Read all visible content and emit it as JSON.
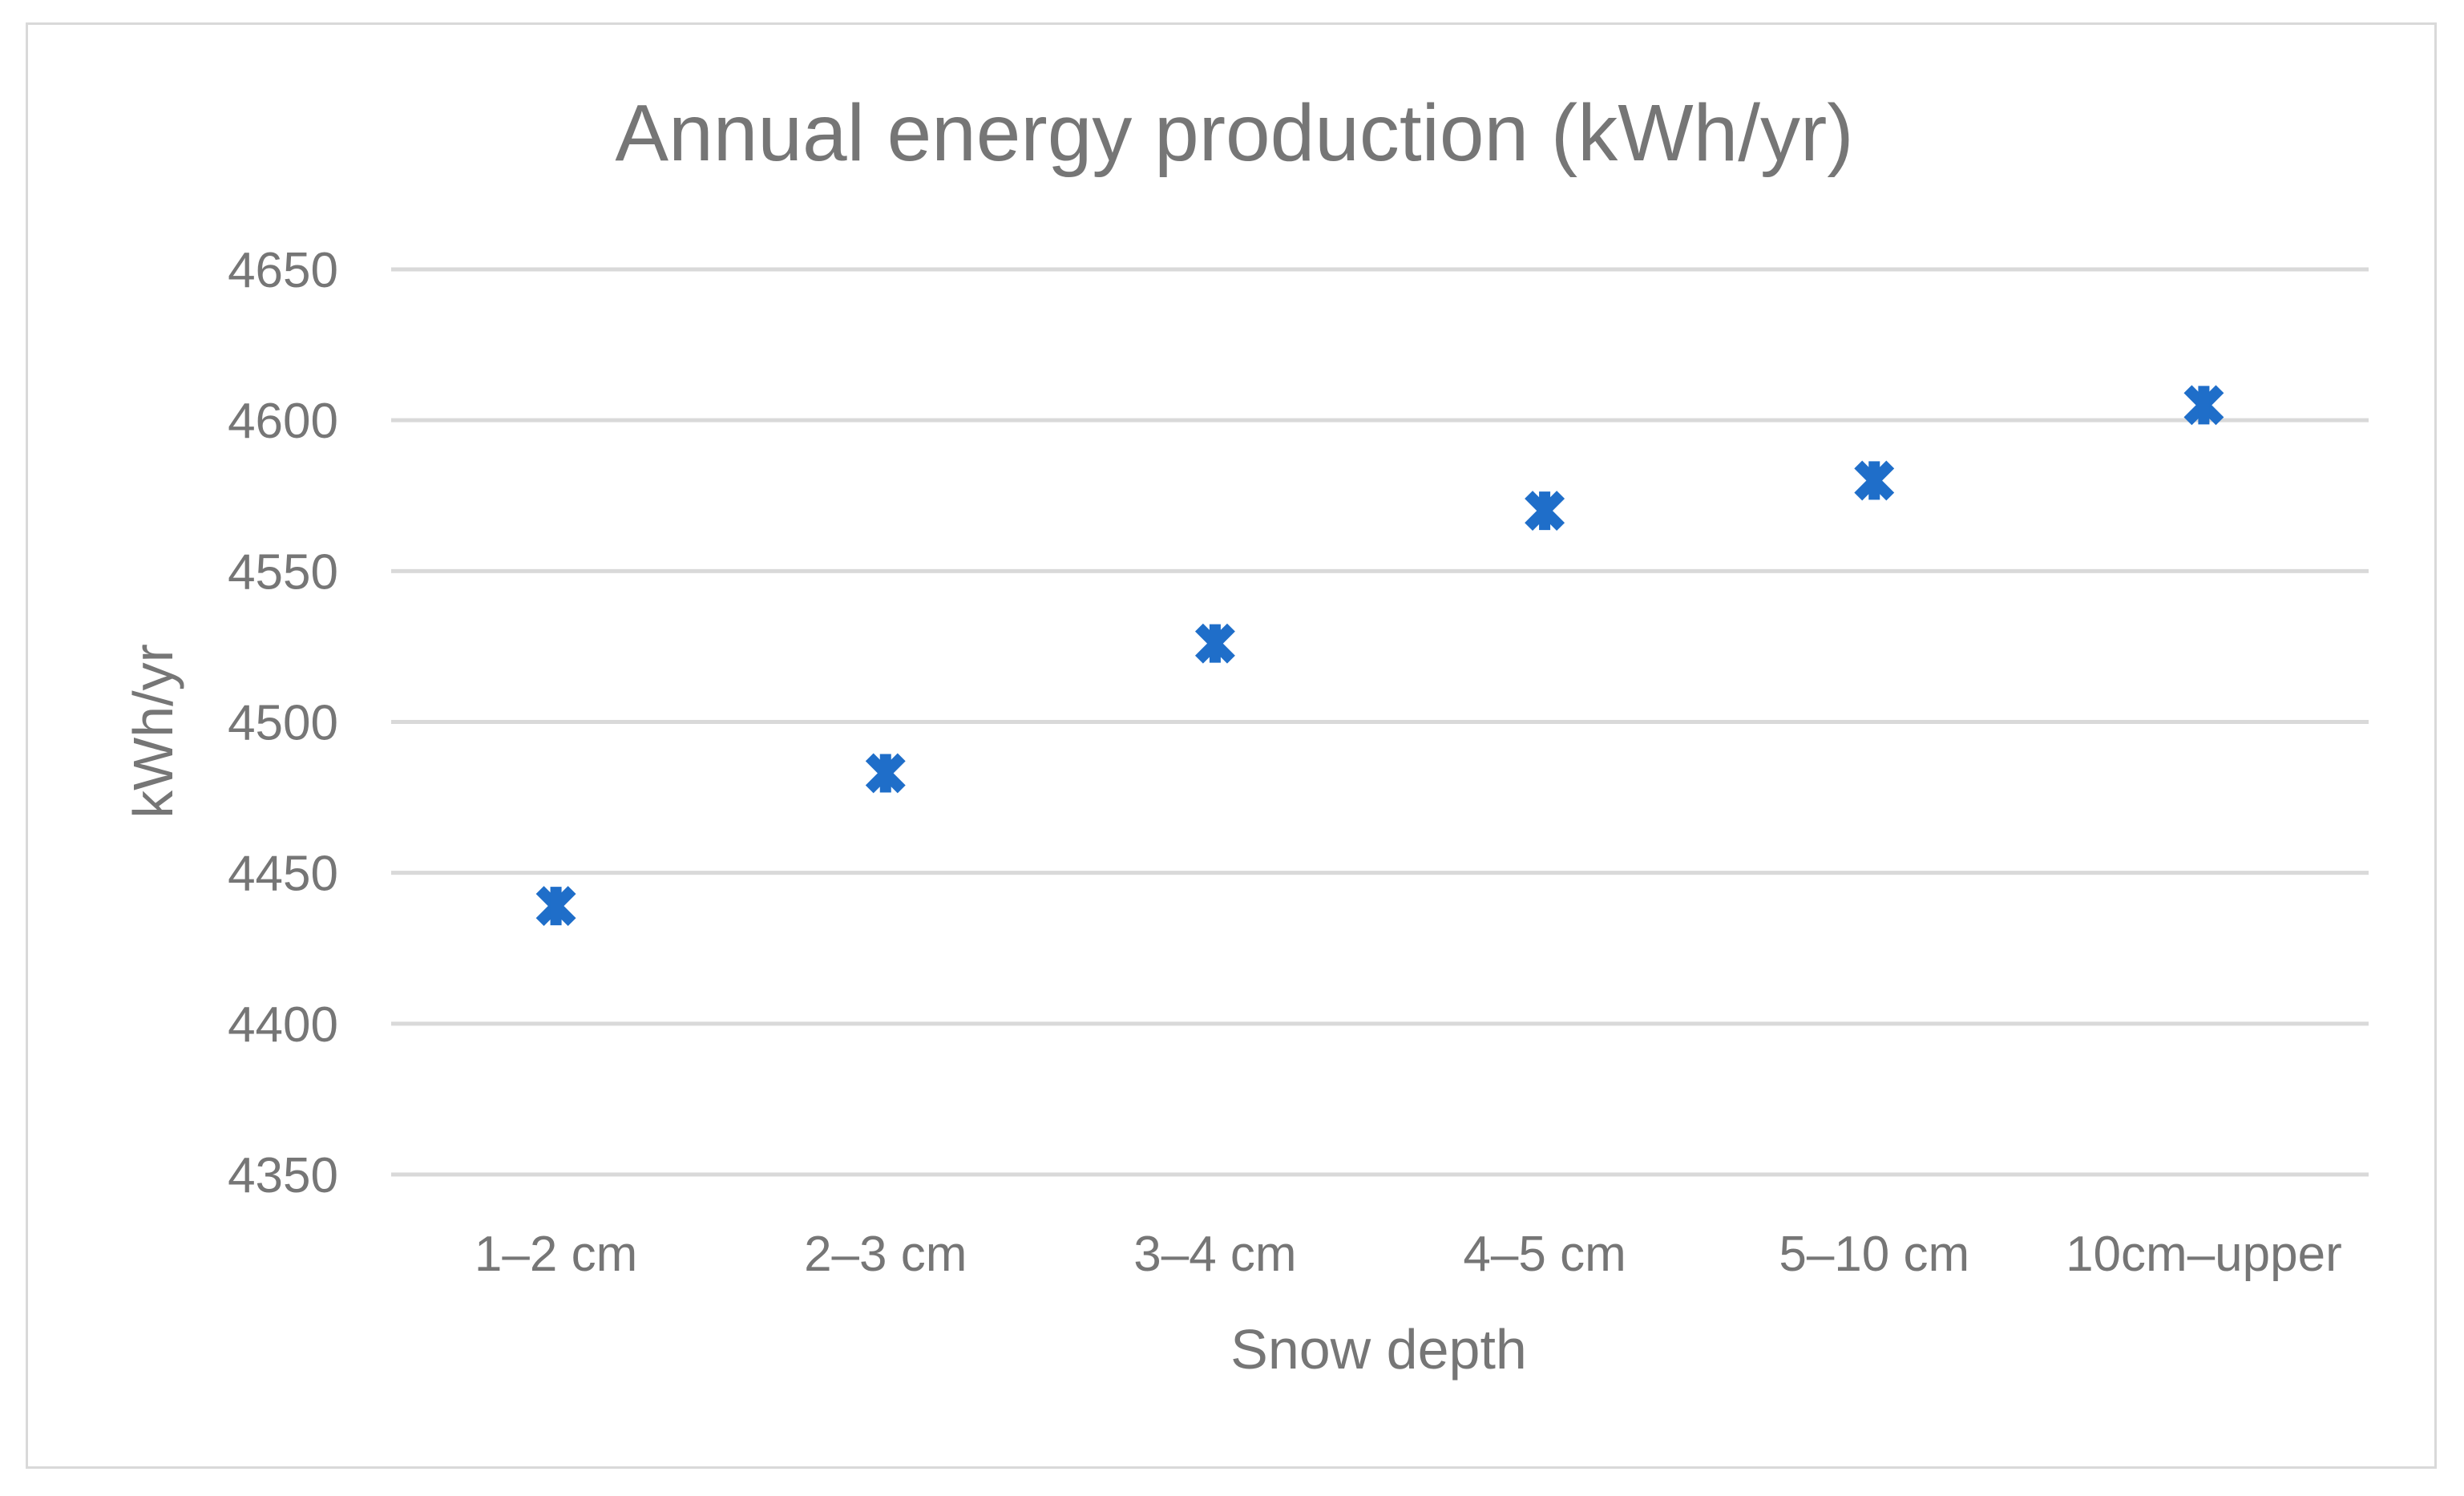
{
  "chart_data": {
    "type": "scatter",
    "title": "Annual energy production (kWh/yr)",
    "xlabel": "Snow depth",
    "ylabel": "kWh/yr",
    "categories": [
      "1–2 cm",
      "2–3 cm",
      "3–4 cm",
      "4–5 cm",
      "5–10 cm",
      "10cm–upper"
    ],
    "series": [
      {
        "name": "Annual energy production",
        "values": [
          4439,
          4483,
          4526,
          4570,
          4580,
          4605
        ]
      }
    ],
    "ylim": [
      4350,
      4650
    ],
    "yticks": [
      4350,
      4400,
      4450,
      4500,
      4550,
      4600,
      4650
    ],
    "grid": true,
    "legend": "none",
    "marker": "asterisk",
    "colors": {
      "marker": "#1f6ec9",
      "grid": "#d9d9d9",
      "text": "#767676",
      "border": "#d9d9d9"
    }
  }
}
